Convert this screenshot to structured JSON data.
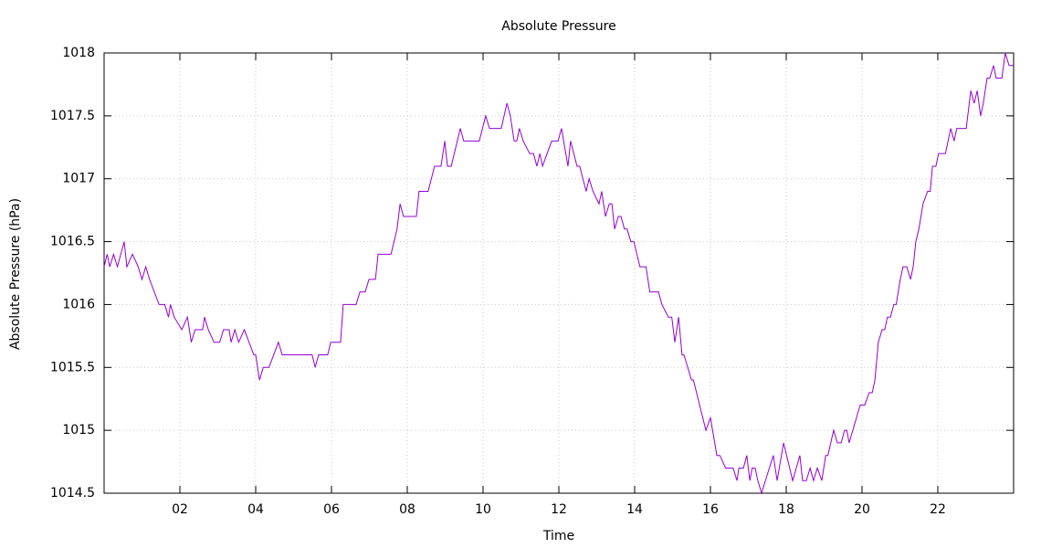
{
  "chart_data": {
    "type": "line",
    "title": "Absolute Pressure",
    "xlabel": "Time",
    "ylabel": "Absolute Pressure (hPa)",
    "grid": true,
    "xlim": [
      0,
      24
    ],
    "ylim": [
      1014.5,
      1018
    ],
    "xticks": [
      {
        "value": 2,
        "label": "02"
      },
      {
        "value": 4,
        "label": "04"
      },
      {
        "value": 6,
        "label": "06"
      },
      {
        "value": 8,
        "label": "08"
      },
      {
        "value": 10,
        "label": "10"
      },
      {
        "value": 12,
        "label": "12"
      },
      {
        "value": 14,
        "label": "14"
      },
      {
        "value": 16,
        "label": "16"
      },
      {
        "value": 18,
        "label": "18"
      },
      {
        "value": 20,
        "label": "20"
      },
      {
        "value": 22,
        "label": "22"
      }
    ],
    "yticks": [
      1014.5,
      1015,
      1015.5,
      1016,
      1016.5,
      1017,
      1017.5,
      1018
    ],
    "x": [
      0,
      0.08,
      0.15,
      0.25,
      0.35,
      0.53,
      0.6,
      0.75,
      0.9,
      1.0,
      1.1,
      1.2,
      1.45,
      1.6,
      1.7,
      1.75,
      1.85,
      2.05,
      2.2,
      2.3,
      2.4,
      2.6,
      2.65,
      2.75,
      2.9,
      3.05,
      3.15,
      3.3,
      3.35,
      3.45,
      3.55,
      3.7,
      3.95,
      4.0,
      4.1,
      4.2,
      4.35,
      4.6,
      4.7,
      5.49,
      5.57,
      5.66,
      5.9,
      5.98,
      6.24,
      6.31,
      6.65,
      6.75,
      6.89,
      6.99,
      7.16,
      7.23,
      7.57,
      7.73,
      7.81,
      7.9,
      8.24,
      8.31,
      8.55,
      8.72,
      8.89,
      8.99,
      9.06,
      9.16,
      9.4,
      9.49,
      9.9,
      10.07,
      10.17,
      10.48,
      10.63,
      10.72,
      10.82,
      10.89,
      10.96,
      11.06,
      11.23,
      11.33,
      11.42,
      11.5,
      11.57,
      11.81,
      11.98,
      12.07,
      12.24,
      12.31,
      12.48,
      12.55,
      12.72,
      12.8,
      12.9,
      13.06,
      13.13,
      13.23,
      13.33,
      13.4,
      13.47,
      13.57,
      13.64,
      13.73,
      13.8,
      13.9,
      13.98,
      14.14,
      14.3,
      14.4,
      14.63,
      14.72,
      14.89,
      14.98,
      15.06,
      15.16,
      15.25,
      15.3,
      15.5,
      15.55,
      15.88,
      16.0,
      16.17,
      16.25,
      16.4,
      16.6,
      16.7,
      16.75,
      16.87,
      16.96,
      17.04,
      17.1,
      17.18,
      17.25,
      17.35,
      17.45,
      17.66,
      17.76,
      17.93,
      18.17,
      18.36,
      18.43,
      18.53,
      18.63,
      18.72,
      18.82,
      18.94,
      19.04,
      19.1,
      19.25,
      19.35,
      19.45,
      19.54,
      19.6,
      19.66,
      19.95,
      20.07,
      20.19,
      20.27,
      20.34,
      20.43,
      20.53,
      20.6,
      20.67,
      20.75,
      20.84,
      20.9,
      21.01,
      21.08,
      21.18,
      21.28,
      21.35,
      21.42,
      21.5,
      21.61,
      21.73,
      21.8,
      21.86,
      21.95,
      22.02,
      22.2,
      22.34,
      22.43,
      22.5,
      22.75,
      22.87,
      22.96,
      23.04,
      23.13,
      23.2,
      23.3,
      23.37,
      23.47,
      23.54,
      23.69,
      23.78,
      23.88,
      24.0
    ],
    "series": [
      {
        "name": "Absolute Pressure",
        "color": "#9400d3",
        "values": [
          1016.3,
          1016.4,
          1016.3,
          1016.4,
          1016.3,
          1016.5,
          1016.3,
          1016.4,
          1016.3,
          1016.2,
          1016.3,
          1016.2,
          1016.0,
          1016.0,
          1015.9,
          1016.0,
          1015.9,
          1015.8,
          1015.9,
          1015.7,
          1015.8,
          1015.8,
          1015.9,
          1015.8,
          1015.7,
          1015.7,
          1015.8,
          1015.8,
          1015.7,
          1015.8,
          1015.7,
          1015.8,
          1015.6,
          1015.6,
          1015.4,
          1015.5,
          1015.5,
          1015.7,
          1015.6,
          1015.6,
          1015.5,
          1015.6,
          1015.6,
          1015.7,
          1015.7,
          1016.0,
          1016.0,
          1016.1,
          1016.1,
          1016.2,
          1016.2,
          1016.4,
          1016.4,
          1016.6,
          1016.8,
          1016.7,
          1016.7,
          1016.9,
          1016.9,
          1017.1,
          1017.1,
          1017.3,
          1017.1,
          1017.1,
          1017.4,
          1017.3,
          1017.3,
          1017.5,
          1017.4,
          1017.4,
          1017.6,
          1017.5,
          1017.3,
          1017.3,
          1017.4,
          1017.3,
          1017.2,
          1017.2,
          1017.1,
          1017.2,
          1017.1,
          1017.3,
          1017.3,
          1017.4,
          1017.1,
          1017.3,
          1017.1,
          1017.1,
          1016.9,
          1017.0,
          1016.9,
          1016.8,
          1016.9,
          1016.7,
          1016.8,
          1016.8,
          1016.6,
          1016.7,
          1016.7,
          1016.6,
          1016.6,
          1016.5,
          1016.5,
          1016.3,
          1016.3,
          1016.1,
          1016.1,
          1016.0,
          1015.9,
          1015.9,
          1015.7,
          1015.9,
          1015.6,
          1015.6,
          1015.4,
          1015.4,
          1015.0,
          1015.1,
          1014.8,
          1014.8,
          1014.7,
          1014.7,
          1014.6,
          1014.7,
          1014.7,
          1014.8,
          1014.6,
          1014.7,
          1014.7,
          1014.6,
          1014.5,
          1014.6,
          1014.8,
          1014.6,
          1014.9,
          1014.6,
          1014.8,
          1014.6,
          1014.6,
          1014.7,
          1014.6,
          1014.7,
          1014.6,
          1014.8,
          1014.8,
          1015.0,
          1014.9,
          1014.9,
          1015.0,
          1015.0,
          1014.9,
          1015.2,
          1015.2,
          1015.3,
          1015.3,
          1015.4,
          1015.7,
          1015.8,
          1015.8,
          1015.9,
          1015.9,
          1016.0,
          1016.0,
          1016.2,
          1016.3,
          1016.3,
          1016.2,
          1016.3,
          1016.5,
          1016.6,
          1016.8,
          1016.9,
          1016.9,
          1017.1,
          1017.1,
          1017.2,
          1017.2,
          1017.4,
          1017.3,
          1017.4,
          1017.4,
          1017.7,
          1017.6,
          1017.7,
          1017.5,
          1017.6,
          1017.8,
          1017.8,
          1017.9,
          1017.8,
          1017.8,
          1018.0,
          1017.9,
          1017.9
        ]
      }
    ]
  }
}
